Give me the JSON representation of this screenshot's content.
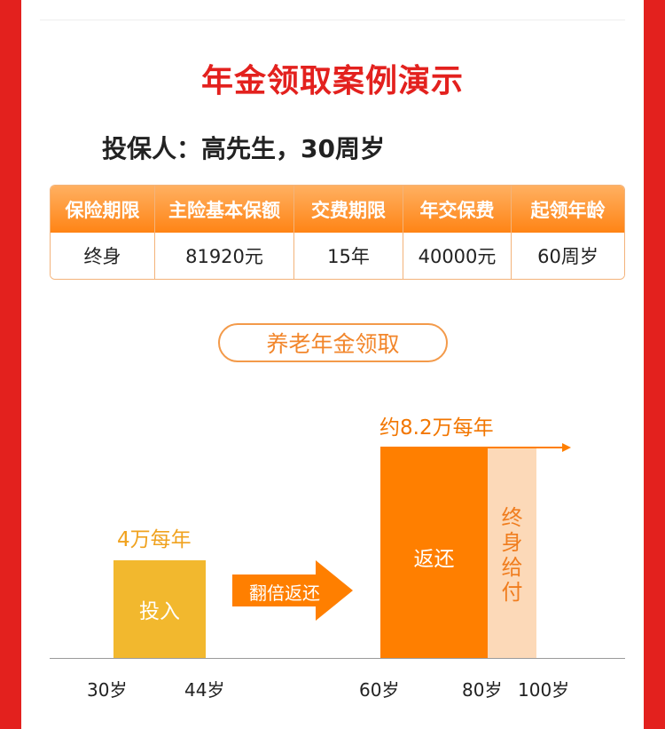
{
  "page": {
    "title": "年金领取案例演示",
    "insured": "投保人：高先生，30周岁"
  },
  "table": {
    "headers": [
      "保险期限",
      "主险基本保额",
      "交费期限",
      "年交保费",
      "起领年龄"
    ],
    "values": [
      "终身",
      "81920元",
      "15年",
      "40000元",
      "60周岁"
    ]
  },
  "section": {
    "title": "养老年金领取"
  },
  "timeline": {
    "invest_amount": "4万每年",
    "invest_label": "投入",
    "arrow_label": "翻倍返还",
    "payout_amount": "约8.2万每年",
    "payout_label": "返还",
    "lifetime_label": "终身给付",
    "ages": [
      "30岁",
      "44岁",
      "60岁",
      "80岁",
      "100岁"
    ]
  },
  "colors": {
    "frame_red": "#e3211e",
    "invest_yellow": "#f2b82e",
    "payout_orange": "#ff7f00",
    "lifetime_peach": "#fcd9b8",
    "table_border": "#f3b37a"
  }
}
